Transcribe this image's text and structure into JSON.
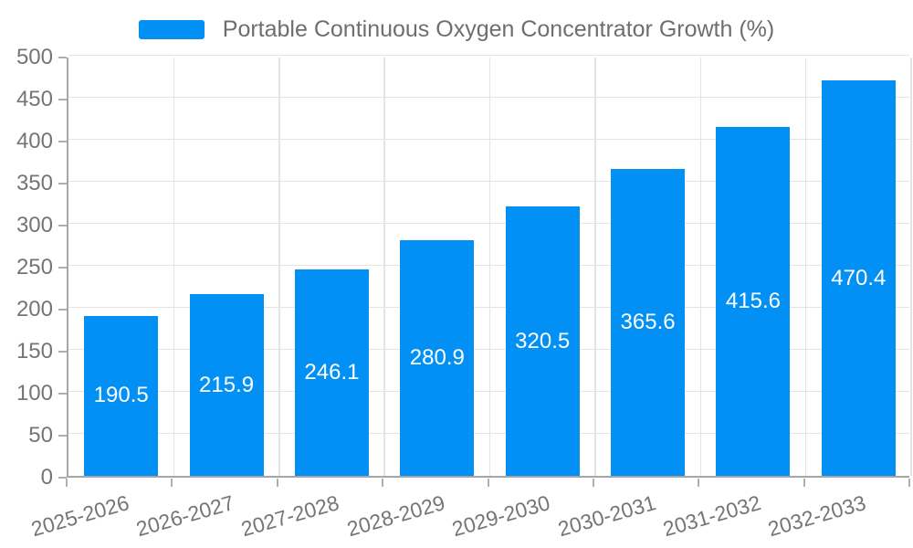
{
  "chart_data": {
    "type": "bar",
    "title": "Portable Continuous Oxygen Concentrator Growth (%)",
    "legend": [
      "Portable Continuous Oxygen Concentrator Growth (%)"
    ],
    "legend_position": "top-center",
    "categories": [
      "2025-2026",
      "2026-2027",
      "2027-2028",
      "2028-2029",
      "2029-2030",
      "2030-2031",
      "2031-2032",
      "2032-2033"
    ],
    "values": [
      190.5,
      215.9,
      246.1,
      280.9,
      320.5,
      365.6,
      415.6,
      470.4
    ],
    "xlabel": "",
    "ylabel": "",
    "ylim": [
      0,
      500
    ],
    "ytick_step": 50,
    "grid": true,
    "data_labels_visible": true,
    "colors": {
      "bar": "#0290f5",
      "grid_line": "#e4e4e4",
      "axis_line": "#a6a6a6",
      "tick_mark": "#b0b0b0",
      "axis_label_text": "#757575",
      "legend_text": "#6e6e6e",
      "data_label_text": "#ffffff",
      "background": "#ffffff"
    }
  }
}
